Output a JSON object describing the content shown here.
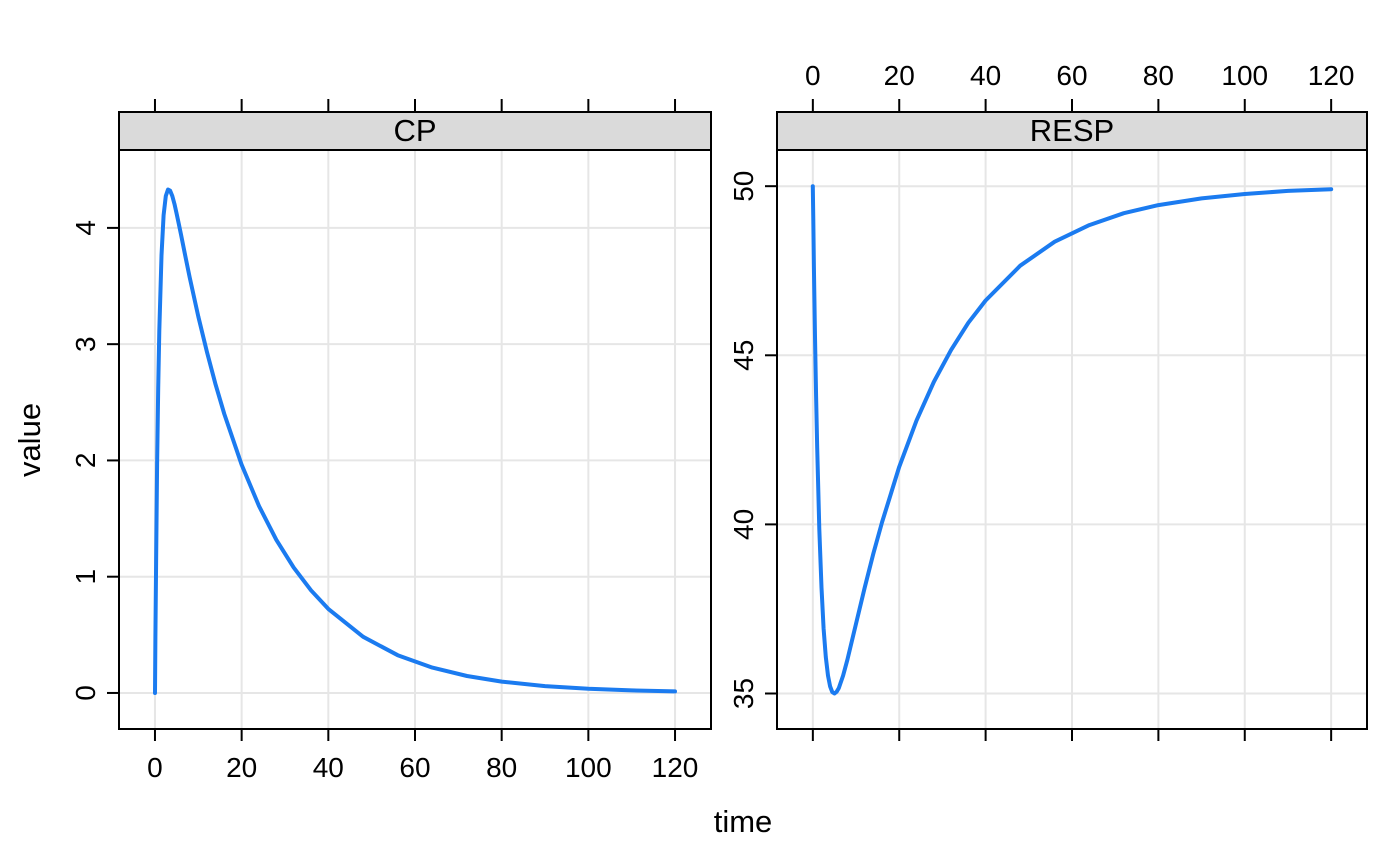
{
  "figure": {
    "x_axis_title": "time",
    "y_axis_title": "value",
    "background": "#FFFFFF",
    "line_color": "#1B7BF0",
    "strip_bg": "#DADADA",
    "grid_color": "#E6E6E6",
    "border_color": "#000000",
    "text_color": "#000000"
  },
  "chart_data": [
    {
      "type": "line",
      "title": "CP",
      "xlabel": "time",
      "ylabel": "value",
      "grid": true,
      "legend": false,
      "x_ticks": [
        0,
        20,
        40,
        60,
        80,
        100,
        120
      ],
      "y_ticks": [
        0,
        1,
        2,
        3,
        4
      ],
      "xlim": [
        -8.3,
        128.3
      ],
      "ylim": [
        -0.31,
        4.67
      ],
      "x_tick_label_side": "bottom",
      "x": [
        0,
        0.1,
        0.25,
        0.5,
        0.75,
        1,
        1.5,
        2,
        2.5,
        3,
        3.5,
        4,
        4.5,
        5,
        5.5,
        6,
        7,
        8,
        10,
        12,
        14,
        16,
        20,
        24,
        28,
        32,
        36,
        40,
        48,
        56,
        64,
        72,
        80,
        90,
        100,
        110,
        120
      ],
      "y": [
        0,
        0.482,
        1.115,
        1.969,
        2.621,
        3.115,
        3.763,
        4.109,
        4.274,
        4.33,
        4.321,
        4.274,
        4.205,
        4.123,
        4.034,
        3.943,
        3.758,
        3.578,
        3.238,
        2.931,
        2.652,
        2.399,
        1.964,
        1.608,
        1.317,
        1.078,
        0.883,
        0.723,
        0.484,
        0.325,
        0.218,
        0.146,
        0.098,
        0.059,
        0.036,
        0.022,
        0.013
      ]
    },
    {
      "type": "line",
      "title": "RESP",
      "xlabel": "time",
      "ylabel": "value",
      "grid": true,
      "legend": false,
      "x_ticks": [
        0,
        20,
        40,
        60,
        80,
        100,
        120
      ],
      "y_ticks": [
        35,
        40,
        45,
        50
      ],
      "xlim": [
        -8.3,
        128.3
      ],
      "ylim": [
        33.95,
        51.07
      ],
      "x_tick_label_side": "top",
      "x": [
        0,
        0.1,
        0.25,
        0.5,
        0.75,
        1,
        1.5,
        2,
        2.5,
        3,
        3.5,
        4,
        4.5,
        5,
        5.5,
        6,
        7,
        8,
        10,
        12,
        14,
        16,
        20,
        24,
        28,
        32,
        36,
        40,
        48,
        56,
        64,
        72,
        80,
        90,
        100,
        110,
        120
      ],
      "y": [
        50,
        49.0,
        47.61,
        45.55,
        43.78,
        42.26,
        39.86,
        38.13,
        36.92,
        36.08,
        35.53,
        35.21,
        35.04,
        35.0,
        35.05,
        35.16,
        35.53,
        36.0,
        37.06,
        38.13,
        39.13,
        40.06,
        41.7,
        43.07,
        44.21,
        45.16,
        45.96,
        46.62,
        47.65,
        48.36,
        48.85,
        49.2,
        49.44,
        49.64,
        49.77,
        49.86,
        49.91
      ]
    }
  ]
}
